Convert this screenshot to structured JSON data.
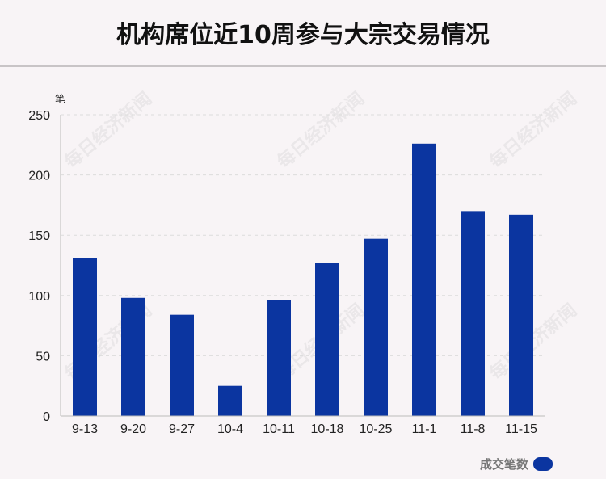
{
  "title": "机构席位近10周参与大宗交易情况",
  "watermark": "每日经济新闻",
  "chart_data": {
    "type": "bar",
    "unit_label": "笔",
    "categories": [
      "9-13",
      "9-20",
      "9-27",
      "10-4",
      "10-11",
      "10-18",
      "10-25",
      "11-1",
      "11-8",
      "11-15"
    ],
    "series": [
      {
        "name": "成交笔数",
        "values": [
          131,
          98,
          84,
          25,
          96,
          127,
          147,
          226,
          170,
          167
        ],
        "color": "#0b35a0"
      }
    ],
    "ylim": [
      0,
      250
    ],
    "yticks": [
      0,
      50,
      100,
      150,
      200,
      250
    ],
    "grid": true,
    "legend_position": "bottom-right"
  }
}
